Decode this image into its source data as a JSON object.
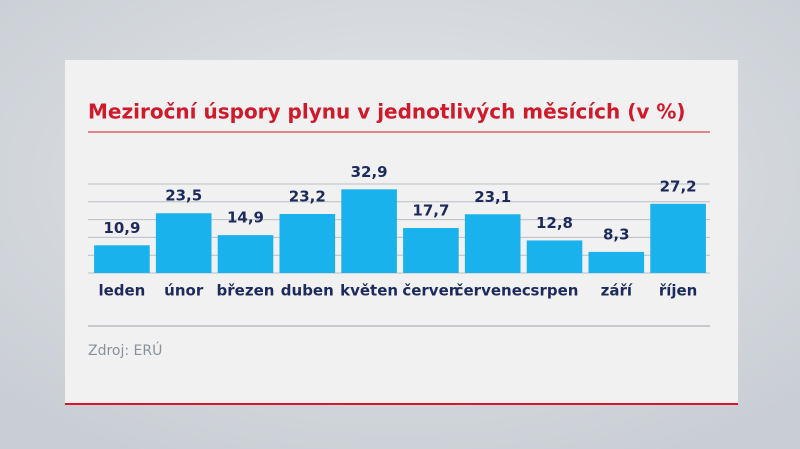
{
  "chart_data": {
    "type": "bar",
    "title": "Meziroční úspory plynu v jednotlivých měsících (v %)",
    "source": "Zdroj: ERÚ",
    "categories": [
      "leden",
      "únor",
      "březen",
      "duben",
      "květen",
      "červen",
      "červenec",
      "srpen",
      "září",
      "říjen"
    ],
    "values": [
      10.9,
      23.5,
      14.9,
      23.2,
      32.9,
      17.7,
      23.1,
      12.8,
      8.3,
      27.2
    ],
    "value_labels": [
      "10,9",
      "23,5",
      "14,9",
      "23,2",
      "32,9",
      "17,7",
      "23,1",
      "12,8",
      "8,3",
      "27,2"
    ],
    "color": "#1ab2ec",
    "ylim": [
      0,
      35
    ],
    "yticks": [
      0,
      7,
      14,
      21,
      28,
      35
    ],
    "grid": true
  }
}
